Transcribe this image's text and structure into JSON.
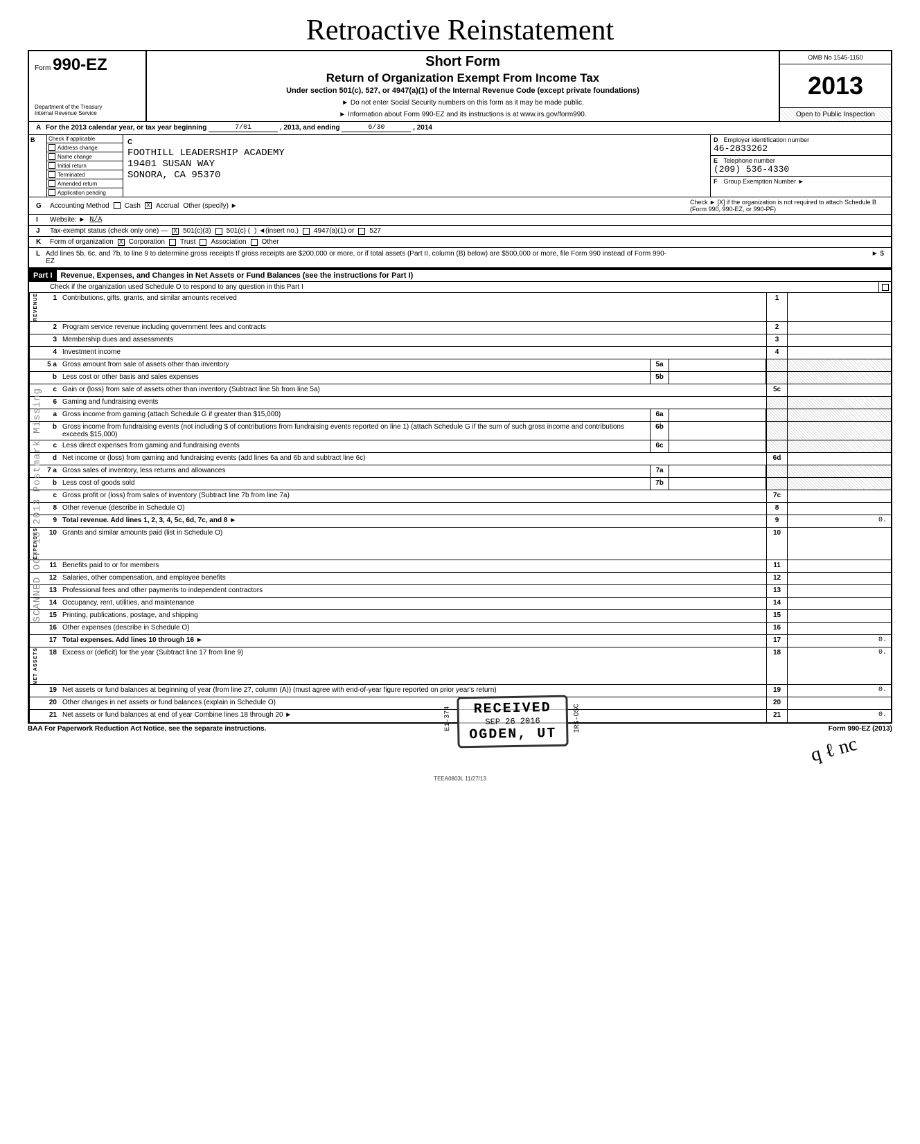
{
  "handwritten_title": "Retroactive Reinstatement",
  "header": {
    "form_label": "Form",
    "form_number": "990-EZ",
    "dept1": "Department of the Treasury",
    "dept2": "Internal Revenue Service",
    "short_form": "Short Form",
    "main_title": "Return of Organization Exempt From Income Tax",
    "sub1": "Under section 501(c), 527, or 4947(a)(1) of the Internal Revenue Code (except private foundations)",
    "note1": "► Do not enter Social Security numbers on this form as it may be made public.",
    "note2": "► Information about Form 990-EZ and its instructions is at www.irs.gov/form990.",
    "omb": "OMB No 1545-1150",
    "year": "2013",
    "open": "Open to Public Inspection"
  },
  "lineA": {
    "text1": "For the 2013 calendar year, or tax year beginning",
    "begin": "7/01",
    "text2": ", 2013, and ending",
    "end": "6/30",
    "text3": ", 2014"
  },
  "checkB": {
    "header": "Check if applicable",
    "items": [
      "Address change",
      "Name change",
      "Initial return",
      "Terminated",
      "Amended return",
      "Application pending"
    ]
  },
  "boxC": {
    "label": "C",
    "name": "FOOTHILL LEADERSHIP ACADEMY",
    "addr": "19401 SUSAN WAY",
    "city": "SONORA, CA 95370"
  },
  "boxD": {
    "label": "D",
    "title": "Employer identification number",
    "value": "46-2833262"
  },
  "boxE": {
    "label": "E",
    "title": "Telephone number",
    "value": "(209) 536-4330"
  },
  "boxF": {
    "label": "F",
    "title": "Group Exemption Number",
    "arrow": "►"
  },
  "lineG": {
    "label": "G",
    "title": "Accounting Method",
    "cash": "Cash",
    "accrual": "Accrual",
    "other": "Other (specify) ►",
    "accrual_checked": "X"
  },
  "lineH": {
    "text": "Check ► [X] if the organization is not required to attach Schedule B (Form 990, 990-EZ, or 990-PF)"
  },
  "lineI": {
    "label": "I",
    "title": "Website: ►",
    "value": "N/A"
  },
  "lineJ": {
    "label": "J",
    "title": "Tax-exempt status (check only one) —",
    "opt1": "501(c)(3)",
    "opt1_checked": "X",
    "opt2": "501(c) (",
    "opt2b": ") ◄(insert no.)",
    "opt3": "4947(a)(1) or",
    "opt4": "527"
  },
  "lineK": {
    "label": "K",
    "title": "Form of organization",
    "corp": "Corporation",
    "corp_checked": "X",
    "trust": "Trust",
    "assoc": "Association",
    "other": "Other"
  },
  "lineL": {
    "label": "L",
    "text": "Add lines 5b, 6c, and 7b, to line 9 to determine gross receipts If gross receipts are $200,000 or more, or if total assets (Part II, column (B) below) are $500,000 or more, file Form 990 instead of Form 990-EZ",
    "arrow": "► $"
  },
  "part1": {
    "label": "Part I",
    "title": "Revenue, Expenses, and Changes in Net Assets or Fund Balances (see the instructions for Part I)",
    "sub": "Check if the organization used Schedule O to respond to any question in this Part I"
  },
  "side_labels": {
    "revenue": "REVENUE",
    "expenses": "EXPENSES",
    "assets": "NET ASSETS"
  },
  "rows": [
    {
      "n": "1",
      "d": "Contributions, gifts, grants, and similar amounts received",
      "en": "1"
    },
    {
      "n": "2",
      "d": "Program service revenue including government fees and contracts",
      "en": "2"
    },
    {
      "n": "3",
      "d": "Membership dues and assessments",
      "en": "3"
    },
    {
      "n": "4",
      "d": "Investment income",
      "en": "4"
    },
    {
      "n": "5 a",
      "d": "Gross amount from sale of assets other than inventory",
      "mn": "5a",
      "shade_end": true
    },
    {
      "n": "b",
      "d": "Less cost or other basis and sales expenses",
      "mn": "5b",
      "shade_end": true
    },
    {
      "n": "c",
      "d": "Gain or (loss) from sale of assets other than inventory (Subtract line 5b from line 5a)",
      "en": "5c"
    },
    {
      "n": "6",
      "d": "Gaming and fundraising events",
      "shade_end": true
    },
    {
      "n": "a",
      "d": "Gross income from gaming (attach Schedule G if greater than $15,000)",
      "mn": "6a",
      "shade_end": true
    },
    {
      "n": "b",
      "d": "Gross income from fundraising events (not including $                    of contributions from fundraising events reported on line 1) (attach Schedule G if the sum of such gross income and contributions exceeds $15,000)",
      "mn": "6b",
      "shade_end": true
    },
    {
      "n": "c",
      "d": "Less direct expenses from gaming and fundraising events",
      "mn": "6c",
      "shade_end": true
    },
    {
      "n": "d",
      "d": "Net income or (loss) from gaming and fundraising events (add lines 6a and 6b and subtract line 6c)",
      "en": "6d"
    },
    {
      "n": "7 a",
      "d": "Gross sales of inventory, less returns and allowances",
      "mn": "7a",
      "shade_end": true
    },
    {
      "n": "b",
      "d": "Less cost of goods sold",
      "mn": "7b",
      "shade_end": true
    },
    {
      "n": "c",
      "d": "Gross profit or (loss) from sales of inventory (Subtract line 7b from line 7a)",
      "en": "7c"
    },
    {
      "n": "8",
      "d": "Other revenue (describe in Schedule O)",
      "en": "8"
    },
    {
      "n": "9",
      "d": "Total revenue. Add lines 1, 2, 3, 4, 5c, 6d, 7c, and 8",
      "en": "9",
      "ev": "0.",
      "bold": true,
      "arrow": true
    },
    {
      "n": "10",
      "d": "Grants and similar amounts paid (list in Schedule O)",
      "en": "10"
    },
    {
      "n": "11",
      "d": "Benefits paid to or for members",
      "en": "11"
    },
    {
      "n": "12",
      "d": "Salaries, other compensation, and employee benefits",
      "en": "12"
    },
    {
      "n": "13",
      "d": "Professional fees and other payments to independent contractors",
      "en": "13"
    },
    {
      "n": "14",
      "d": "Occupancy, rent, utilities, and maintenance",
      "en": "14"
    },
    {
      "n": "15",
      "d": "Printing, publications, postage, and shipping",
      "en": "15"
    },
    {
      "n": "16",
      "d": "Other expenses (describe in Schedule O)",
      "en": "16"
    },
    {
      "n": "17",
      "d": "Total expenses. Add lines 10 through 16",
      "en": "17",
      "ev": "0.",
      "bold": true,
      "arrow": true
    },
    {
      "n": "18",
      "d": "Excess or (deficit) for the year (Subtract line 17 from line 9)",
      "en": "18",
      "ev": "0."
    },
    {
      "n": "19",
      "d": "Net assets or fund balances at beginning of year (from line 27, column (A)) (must agree with end-of-year figure reported on prior year's return)",
      "en": "19",
      "ev": "0."
    },
    {
      "n": "20",
      "d": "Other changes in net assets or fund balances (explain in Schedule O)",
      "en": "20"
    },
    {
      "n": "21",
      "d": "Net assets or fund balances at end of year Combine lines 18 through 20",
      "en": "21",
      "ev": "0.",
      "arrow": true
    }
  ],
  "section_breaks": {
    "expenses_start": 17,
    "assets_start": 25
  },
  "stamp": {
    "received": "RECEIVED",
    "date": "SEP 26 2016",
    "loc": "OGDEN, UT",
    "side1": "E1-374",
    "side2": "IRS-OSC"
  },
  "postmark": "SCANNED OCT 13 2013  Postmark Missing",
  "footer": {
    "left": "BAA For Paperwork Reduction Act Notice, see the separate instructions.",
    "right": "Form 990-EZ (2013)"
  },
  "tiny": "TEEA0803L  11/27/13",
  "scribble": "q ℓ nc"
}
